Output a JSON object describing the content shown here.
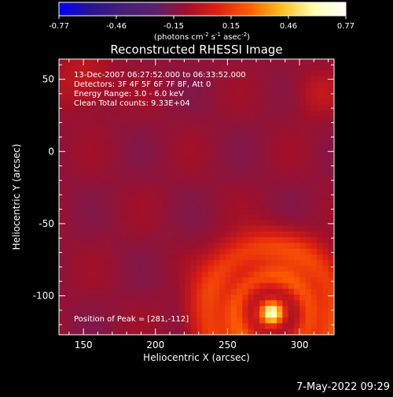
{
  "colorbar": {
    "ticks": [
      "-0.77",
      "-0.46",
      "-0.15",
      "0.15",
      "0.46",
      "0.77"
    ],
    "unit_parts": [
      "(photons cm",
      "-2",
      " s",
      "-1",
      " asec",
      "-2",
      ")"
    ],
    "colors": [
      "#0000ff",
      "#2a1390",
      "#452075",
      "#5a2070",
      "#a0102a",
      "#e02010",
      "#ff6000",
      "#ffc020",
      "#ffffb0",
      "#ffffff"
    ]
  },
  "chart_data": {
    "type": "heatmap",
    "title": "Reconstructed RHESSI Image",
    "xlabel": "Heliocentric X (arcsec)",
    "ylabel": "Heliocentric Y (arcsec)",
    "xlim": [
      133,
      324
    ],
    "ylim": [
      -127,
      64
    ],
    "xticks": [
      150,
      200,
      250,
      300
    ],
    "yticks": [
      50,
      0,
      -50,
      -100
    ],
    "zlim": [
      -0.77,
      0.77
    ],
    "annotations": [
      "13-Dec-2007 06:27:52.000 to 06:33:52.000",
      "Detectors: 3F 4F 5F 6F 7F 8F, Att 0",
      "Energy Range: 3.0 - 6.0 keV",
      "Clean     Total counts: 9.33E+04"
    ],
    "peak_label": "Position of Peak = [281,-112]",
    "peak": [
      281,
      -112
    ]
  },
  "footer": {
    "timestamp": "7-May-2022 09:29"
  }
}
